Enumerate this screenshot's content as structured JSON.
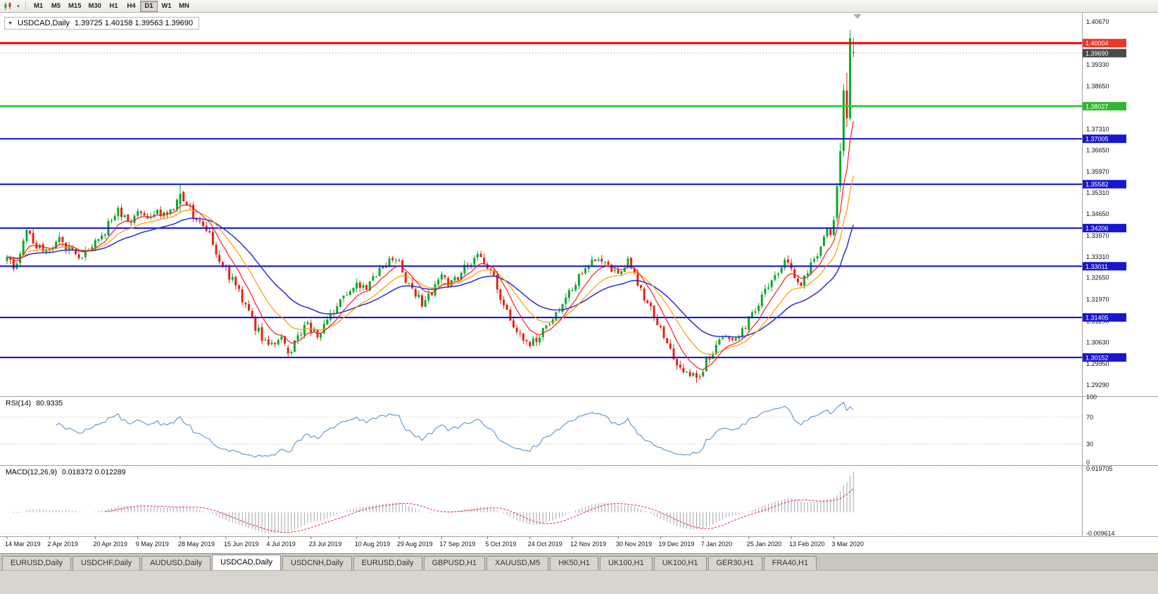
{
  "toolbar": {
    "timeframes": [
      {
        "label": "M1"
      },
      {
        "label": "M5"
      },
      {
        "label": "M15"
      },
      {
        "label": "M30"
      },
      {
        "label": "H1"
      },
      {
        "label": "H4"
      },
      {
        "label": "D1",
        "active": true
      },
      {
        "label": "W1"
      },
      {
        "label": "MN"
      }
    ]
  },
  "chart": {
    "title_symbol": "USDCAD,Daily",
    "title_values": "1.39725 1.40158 1.39563 1.39690"
  },
  "price_axis": {
    "ticks": [
      "1.40670",
      "1.39330",
      "1.38650",
      "1.37310",
      "1.36650",
      "1.35970",
      "1.35310",
      "1.34650",
      "1.33970",
      "1.33310",
      "1.32650",
      "1.31970",
      "1.31290",
      "1.30630",
      "1.29950",
      "1.29290"
    ],
    "badges": [
      {
        "label": "1.40004",
        "price": 1.40004,
        "bg": "#e8392a"
      },
      {
        "label": "1.39690",
        "price": 1.3969,
        "bg": "#4a4a4a"
      },
      {
        "label": "1.38027",
        "price": 1.38027,
        "bg": "#2db92d"
      },
      {
        "label": "1.37005",
        "price": 1.37005,
        "bg": "#1717cf"
      },
      {
        "label": "1.35582",
        "price": 1.35582,
        "bg": "#1717cf"
      },
      {
        "label": "1.34206",
        "price": 1.34206,
        "bg": "#1717cf"
      },
      {
        "label": "1.33011",
        "price": 1.33011,
        "bg": "#1717cf"
      },
      {
        "label": "1.31405",
        "price": 1.31405,
        "bg": "#1717cf"
      },
      {
        "label": "1.30152",
        "price": 1.30152,
        "bg": "#1717cf"
      }
    ]
  },
  "x_axis": {
    "labels": [
      {
        "text": "14 Mar 2019",
        "i": 0
      },
      {
        "text": "2 Apr 2019",
        "i": 13
      },
      {
        "text": "20 Apr 2019",
        "i": 27
      },
      {
        "text": "9 May 2019",
        "i": 40
      },
      {
        "text": "28 May 2019",
        "i": 53
      },
      {
        "text": "15 Jun 2019",
        "i": 67
      },
      {
        "text": "4 Jul 2019",
        "i": 80
      },
      {
        "text": "23 Jul 2019",
        "i": 93
      },
      {
        "text": "10 Aug 2019",
        "i": 107
      },
      {
        "text": "29 Aug 2019",
        "i": 120
      },
      {
        "text": "17 Sep 2019",
        "i": 133
      },
      {
        "text": "5 Oct 2019",
        "i": 147
      },
      {
        "text": "24 Oct 2019",
        "i": 160
      },
      {
        "text": "12 Nov 2019",
        "i": 173
      },
      {
        "text": "30 Nov 2019",
        "i": 187
      },
      {
        "text": "19 Dec 2019",
        "i": 200
      },
      {
        "text": "7 Jan 2020",
        "i": 213
      },
      {
        "text": "25 Jan 2020",
        "i": 227
      },
      {
        "text": "13 Feb 2020",
        "i": 240
      },
      {
        "text": "3 Mar 2020",
        "i": 253
      }
    ]
  },
  "rsi": {
    "label": "RSI(14)",
    "value": "80.9335",
    "levels": [
      "100",
      "70",
      "30",
      "0"
    ]
  },
  "macd": {
    "label": "MACD(12,26,9)",
    "value": "0.018372 0.012289",
    "axis_max": "0.019705",
    "axis_min": "-0.009614"
  },
  "tabs": [
    {
      "label": "EURUSD,Daily"
    },
    {
      "label": "USDCHF,Daily"
    },
    {
      "label": "AUDUSD,Daily"
    },
    {
      "label": "USDCAD,Daily",
      "active": true
    },
    {
      "label": "USDCNH,Daily"
    },
    {
      "label": "EURUSD,Daily"
    },
    {
      "label": "GBPUSD,H1"
    },
    {
      "label": "XAUUSD,M5"
    },
    {
      "label": "HK50,H1"
    },
    {
      "label": "UK100,H1"
    },
    {
      "label": "UK100,H1"
    },
    {
      "label": "GER30,H1"
    },
    {
      "label": "FRA40,H1"
    }
  ],
  "chart_data": {
    "type": "candlestick",
    "symbol": "USDCAD",
    "period": "Daily",
    "last_candle_ohlc": {
      "open": 1.39725,
      "high": 1.40158,
      "low": 1.39563,
      "close": 1.3969
    },
    "candle_count": 260,
    "price_scale": {
      "top": 1.40957,
      "bottom": 1.2896
    },
    "levels": [
      {
        "price": 1.40004,
        "color": "#fe0000",
        "width": 3,
        "kind": "resistance"
      },
      {
        "price": 1.38027,
        "color": "#33cc33",
        "width": 3,
        "kind": "support"
      },
      {
        "price": 1.37005,
        "color": "#0d0dd0",
        "width": 2,
        "kind": "level"
      },
      {
        "price": 1.35582,
        "color": "#0d0dd0",
        "width": 2,
        "kind": "level"
      },
      {
        "price": 1.34206,
        "color": "#0d0dd0",
        "width": 2,
        "kind": "level"
      },
      {
        "price": 1.33011,
        "color": "#0d0dd0",
        "width": 2,
        "kind": "level"
      },
      {
        "price": 1.31405,
        "color": "#0d0dd0",
        "width": 2,
        "kind": "level"
      },
      {
        "price": 1.30152,
        "color": "#0d0dd0",
        "width": 2,
        "kind": "level"
      }
    ],
    "colors": {
      "up": "#0aa82a",
      "down": "#e42313",
      "ma_fast": "#ff1a1a",
      "ma_mid": "#ff9900",
      "ma_slow": "#2330cf",
      "rsi": "#4b89c8",
      "macd_hist": "#a6a6a6",
      "macd_signal": "#e03030"
    },
    "moving_averages": [
      {
        "type": "ema",
        "period": 8,
        "color": "#ff1a1a"
      },
      {
        "type": "ema",
        "period": 17,
        "color": "#ff9900"
      },
      {
        "type": "ema",
        "period": 34,
        "color": "#2330cf"
      }
    ],
    "close_anchors": [
      [
        0,
        1.3325
      ],
      [
        2,
        1.3298
      ],
      [
        4,
        1.3342
      ],
      [
        6,
        1.3415
      ],
      [
        8,
        1.337
      ],
      [
        11,
        1.3352
      ],
      [
        13,
        1.3358
      ],
      [
        16,
        1.3392
      ],
      [
        19,
        1.3348
      ],
      [
        22,
        1.333
      ],
      [
        25,
        1.3352
      ],
      [
        28,
        1.3385
      ],
      [
        31,
        1.3428
      ],
      [
        34,
        1.3478
      ],
      [
        37,
        1.3442
      ],
      [
        40,
        1.3468
      ],
      [
        43,
        1.3438
      ],
      [
        46,
        1.3472
      ],
      [
        49,
        1.3455
      ],
      [
        52,
        1.3505
      ],
      [
        53,
        1.3528
      ],
      [
        55,
        1.3495
      ],
      [
        58,
        1.3452
      ],
      [
        61,
        1.3422
      ],
      [
        63,
        1.3368
      ],
      [
        66,
        1.3302
      ],
      [
        69,
        1.3258
      ],
      [
        72,
        1.3195
      ],
      [
        75,
        1.3128
      ],
      [
        78,
        1.3082
      ],
      [
        81,
        1.3052
      ],
      [
        84,
        1.3068
      ],
      [
        86,
        1.3028
      ],
      [
        89,
        1.3075
      ],
      [
        92,
        1.3122
      ],
      [
        95,
        1.3088
      ],
      [
        98,
        1.3125
      ],
      [
        101,
        1.3172
      ],
      [
        104,
        1.3215
      ],
      [
        107,
        1.3248
      ],
      [
        110,
        1.3228
      ],
      [
        113,
        1.3278
      ],
      [
        116,
        1.3305
      ],
      [
        119,
        1.3332
      ],
      [
        121,
        1.3282
      ],
      [
        124,
        1.3228
      ],
      [
        127,
        1.3185
      ],
      [
        130,
        1.3222
      ],
      [
        133,
        1.3268
      ],
      [
        136,
        1.3242
      ],
      [
        139,
        1.3288
      ],
      [
        142,
        1.3318
      ],
      [
        145,
        1.3332
      ],
      [
        148,
        1.3285
      ],
      [
        151,
        1.3205
      ],
      [
        154,
        1.3135
      ],
      [
        157,
        1.3085
      ],
      [
        160,
        1.3052
      ],
      [
        163,
        1.3078
      ],
      [
        166,
        1.3128
      ],
      [
        169,
        1.3158
      ],
      [
        172,
        1.3225
      ],
      [
        175,
        1.3268
      ],
      [
        178,
        1.3298
      ],
      [
        181,
        1.3328
      ],
      [
        184,
        1.3302
      ],
      [
        187,
        1.3282
      ],
      [
        190,
        1.3312
      ],
      [
        193,
        1.3252
      ],
      [
        196,
        1.3185
      ],
      [
        199,
        1.3125
      ],
      [
        202,
        1.3062
      ],
      [
        205,
        1.2995
      ],
      [
        208,
        1.2962
      ],
      [
        211,
        1.2952
      ],
      [
        214,
        1.3002
      ],
      [
        217,
        1.3052
      ],
      [
        220,
        1.3082
      ],
      [
        223,
        1.3062
      ],
      [
        226,
        1.3112
      ],
      [
        229,
        1.3162
      ],
      [
        232,
        1.3222
      ],
      [
        235,
        1.3272
      ],
      [
        238,
        1.3312
      ],
      [
        240,
        1.3292
      ],
      [
        243,
        1.3252
      ],
      [
        245,
        1.3292
      ],
      [
        247,
        1.3325
      ],
      [
        249,
        1.3362
      ],
      [
        251,
        1.342
      ],
      [
        252,
        1.34
      ],
      [
        253,
        1.3445
      ],
      [
        254,
        1.3552
      ],
      [
        255,
        1.3662
      ],
      [
        256,
        1.3852
      ],
      [
        257,
        1.3765
      ],
      [
        258,
        1.4016
      ],
      [
        259,
        1.3969
      ]
    ],
    "candle_overrides": {
      "53": [
        1.3495,
        1.356,
        1.3468,
        1.3528
      ],
      "86": [
        1.3046,
        1.3055,
        1.3016,
        1.3028
      ],
      "211": [
        1.2966,
        1.2974,
        1.2936,
        1.2952
      ],
      "254": [
        1.3452,
        1.3562,
        1.344,
        1.3552
      ],
      "255": [
        1.3552,
        1.3688,
        1.3534,
        1.3662
      ],
      "256": [
        1.3662,
        1.3872,
        1.3646,
        1.3852
      ],
      "257": [
        1.3852,
        1.3908,
        1.3738,
        1.3765
      ],
      "258": [
        1.3765,
        1.4042,
        1.3758,
        1.4016
      ],
      "259": [
        1.39725,
        1.40158,
        1.39563,
        1.3969
      ]
    },
    "rsi_current": 80.9335,
    "macd_current": {
      "main": 0.018372,
      "signal": 0.012289
    },
    "macd_scale": {
      "max": 0.019705,
      "min": -0.009614
    }
  }
}
